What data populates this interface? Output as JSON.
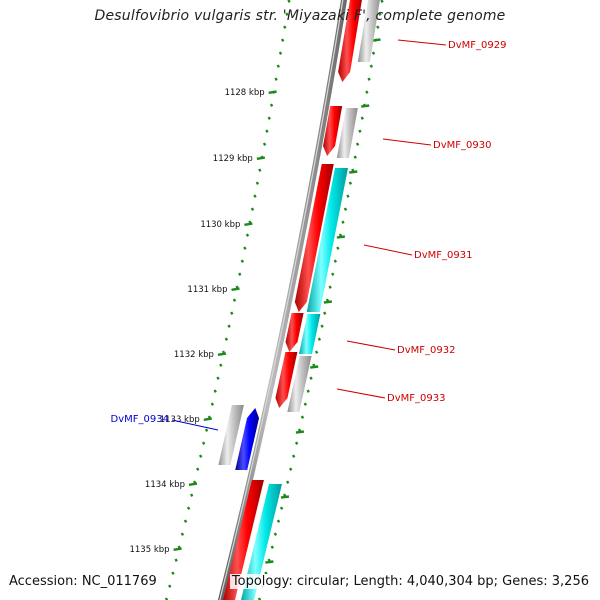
{
  "title": "Desulfovibrio vulgaris str. 'Miyazaki F', complete genome",
  "footer": {
    "accession": "Accession: NC_011769",
    "summary": "Topology: circular; Length: 4,040,304 bp; Genes: 3,256"
  },
  "colors": {
    "backbone": "#8a8a8a",
    "tick": "#1a8a1a",
    "forward_gene": "#ff0000",
    "cds_feature": "#00e8e8",
    "gray_feature": "#bdbdbd",
    "highlight_gene": "#0000ff",
    "label_red": "#cc0000",
    "label_blue": "#0000cc"
  },
  "scale_labels": [
    "1128 kbp",
    "1129 kbp",
    "1130 kbp",
    "1131 kbp",
    "1132 kbp",
    "1133 kbp",
    "1134 kbp",
    "1135 kbp"
  ],
  "genes": [
    {
      "label": "DvMF_0929",
      "color": "red"
    },
    {
      "label": "DvMF_0930",
      "color": "red"
    },
    {
      "label": "DvMF_0931",
      "color": "red"
    },
    {
      "label": "DvMF_0932",
      "color": "red"
    },
    {
      "label": "DvMF_0933",
      "color": "red"
    },
    {
      "label": "DvMF_0934",
      "color": "blue"
    }
  ]
}
